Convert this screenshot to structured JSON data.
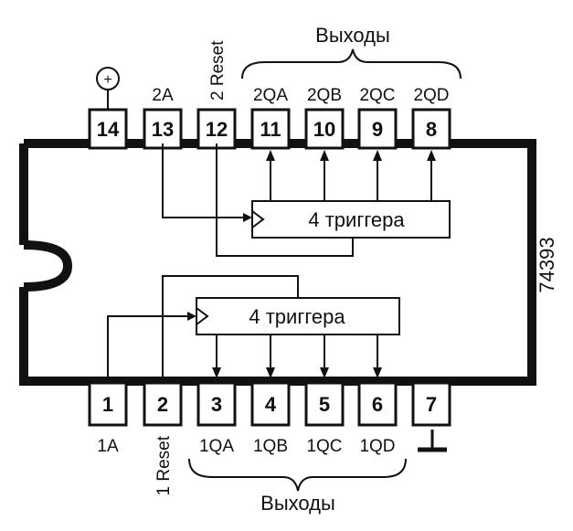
{
  "chip": {
    "part_number": "74393",
    "notch": "notch"
  },
  "power_symbol": "+",
  "outputs_label_top": "Выходы",
  "outputs_label_bottom": "Выходы",
  "top_pins": [
    {
      "num": "14",
      "label": ""
    },
    {
      "num": "13",
      "label": "2A"
    },
    {
      "num": "12",
      "label": "2 Reset"
    },
    {
      "num": "11",
      "label": "2QA"
    },
    {
      "num": "10",
      "label": "2QB"
    },
    {
      "num": "9",
      "label": "2QC"
    },
    {
      "num": "8",
      "label": "2QD"
    }
  ],
  "bottom_pins": [
    {
      "num": "1",
      "label": "1A"
    },
    {
      "num": "2",
      "label": "1 Reset"
    },
    {
      "num": "3",
      "label": "1QA"
    },
    {
      "num": "4",
      "label": "1QB"
    },
    {
      "num": "5",
      "label": "1QC"
    },
    {
      "num": "6",
      "label": "1QD"
    },
    {
      "num": "7",
      "label": ""
    }
  ],
  "blocks": {
    "upper": "4 триггера",
    "lower": "4 триггера"
  },
  "ground_symbol": "ground"
}
